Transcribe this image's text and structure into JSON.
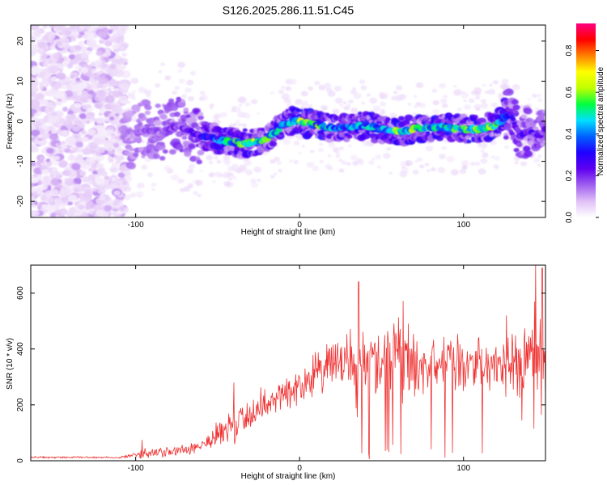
{
  "title": "S126.2025.286.11.51.C45",
  "chart_data": [
    {
      "type": "heatmap",
      "xlabel": "Height of straight line (km)",
      "ylabel": "Frequency (Hz)",
      "xlim": [
        -164,
        150
      ],
      "ylim": [
        -24,
        24
      ],
      "xticks": [
        -100,
        0,
        100
      ],
      "yticks": [
        -20,
        -10,
        0,
        10,
        20
      ],
      "colorbar": {
        "label": "Normalized spectral amplitude",
        "range": [
          0,
          0.93
        ],
        "ticks": [
          "0.0",
          "0.2",
          "0.4",
          "0.6",
          "0.8"
        ],
        "tick_values": [
          0,
          0.2,
          0.4,
          0.6,
          0.8
        ],
        "colors": [
          "#ffffff",
          "#e0c0f6",
          "#a060f0",
          "#6000f0",
          "#2000ff",
          "#0060ff",
          "#00e0ff",
          "#00ff40",
          "#c0ff00",
          "#ffff00",
          "#ff8000",
          "#ff0000",
          "#ff0080"
        ]
      },
      "ridge": {
        "x": [
          -105,
          -95,
          -85,
          -75,
          -65,
          -55,
          -45,
          -35,
          -25,
          -15,
          -10,
          -5,
          0,
          10,
          20,
          30,
          40,
          50,
          60,
          70,
          80,
          90,
          100,
          110,
          120,
          128,
          135,
          140,
          145,
          150
        ],
        "freq": [
          -5,
          -2,
          -3,
          -1,
          -3,
          -4,
          -5,
          -5.5,
          -5,
          -3,
          -1,
          0,
          0,
          -1,
          -1.5,
          -1.5,
          -1,
          -2,
          -2.5,
          -2,
          -1.5,
          -1.5,
          -2,
          -2,
          -1,
          2,
          -4,
          -2,
          -4,
          -2
        ],
        "amplitude": [
          0.15,
          0.2,
          0.2,
          0.25,
          0.3,
          0.4,
          0.55,
          0.7,
          0.7,
          0.55,
          0.5,
          0.6,
          0.75,
          0.65,
          0.5,
          0.5,
          0.55,
          0.6,
          0.75,
          0.7,
          0.65,
          0.65,
          0.7,
          0.7,
          0.65,
          0.35,
          0.3,
          0.35,
          0.3,
          0.25
        ]
      }
    },
    {
      "type": "line",
      "xlabel": "Height of straight line (km)",
      "ylabel": "SNR (10 * v/v)",
      "xlim": [
        -164,
        150
      ],
      "ylim": [
        0,
        700
      ],
      "xticks": [
        -100,
        0,
        100
      ],
      "yticks": [
        0,
        200,
        400,
        600
      ],
      "series": [
        {
          "name": "SNR",
          "color": "#ef3333",
          "x_envelope": [
            -164,
            -110,
            -96,
            -80,
            -70,
            -60,
            -50,
            -40,
            -30,
            -20,
            -10,
            0,
            10,
            20,
            30,
            35,
            40,
            50,
            60,
            70,
            80,
            90,
            100,
            110,
            120,
            130,
            135,
            140,
            145,
            150
          ],
          "mean": [
            12,
            12,
            25,
            30,
            40,
            60,
            90,
            120,
            170,
            210,
            240,
            270,
            310,
            340,
            360,
            330,
            350,
            340,
            380,
            340,
            330,
            360,
            340,
            360,
            340,
            360,
            300,
            340,
            350,
            300
          ],
          "spread": [
            4,
            4,
            20,
            25,
            30,
            40,
            60,
            90,
            80,
            80,
            80,
            80,
            100,
            110,
            150,
            200,
            180,
            180,
            190,
            150,
            130,
            120,
            110,
            100,
            110,
            150,
            200,
            220,
            250,
            250
          ],
          "peaks": [
            [
              36,
              640
            ],
            [
              63,
              572
            ],
            [
              144,
              700
            ],
            [
              148,
              690
            ],
            [
              126,
              520
            ],
            [
              -40,
              280
            ],
            [
              -96,
              75
            ]
          ]
        }
      ]
    }
  ]
}
